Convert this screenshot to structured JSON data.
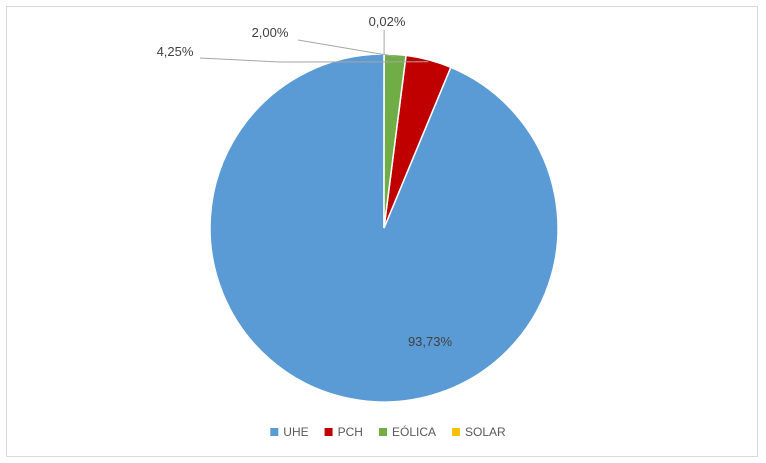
{
  "chart_data": {
    "type": "pie",
    "title": "",
    "categories": [
      "UHE",
      "PCH",
      "EÓLICA",
      "SOLAR"
    ],
    "values": [
      93.73,
      4.25,
      2.0,
      0.02
    ],
    "labels": [
      "93,73%",
      "4,25%",
      "2,00%",
      "0,02%"
    ],
    "colors": [
      "#5b9bd5",
      "#c00000",
      "#70ad47",
      "#ffc000"
    ],
    "start_angle": "12 o'clock",
    "direction": "counter-clockwise",
    "legend": "bottom",
    "grid": false
  }
}
